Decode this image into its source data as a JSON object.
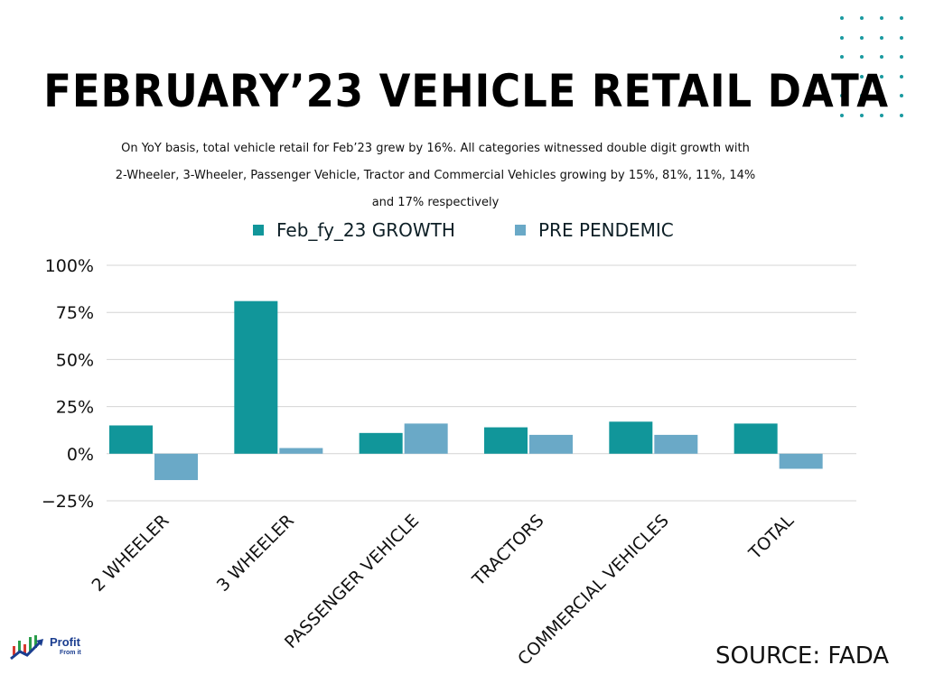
{
  "page": {
    "title": "FEBRUARY’23 VEHICLE RETAIL DATA",
    "source": "SOURCE: FADA",
    "logo_text_main": "Profit",
    "logo_text_sub": "From it"
  },
  "colors": {
    "series_1": "#11969a",
    "series_2": "#6aa9c7",
    "grid": "#d4d4d4",
    "dots": "#1a9aa0"
  },
  "chart_data": {
    "type": "bar",
    "title": "FEBRUARY’23 VEHICLE RETAIL DATA",
    "subtitle_lines": [
      "On YoY basis, total vehicle retail for Feb’23 grew by 16%. All categories witnessed double digit growth with",
      "2-Wheeler, 3-Wheeler, Passenger Vehicle, Tractor and Commercial Vehicles growing by 15%, 81%, 11%, 14%",
      "and 17% respectively"
    ],
    "categories": [
      "2 WHEELER",
      "3 WHEELER",
      "PASSENGER VEHICLE",
      "TRACTORS",
      "COMMERCIAL VEHICLES",
      "TOTAL"
    ],
    "series": [
      {
        "name": "Feb_fy_23 GROWTH",
        "values": [
          15,
          81,
          11,
          14,
          17,
          16
        ]
      },
      {
        "name": "PRE PENDEMIC",
        "values": [
          -14,
          3,
          16,
          10,
          10,
          -8
        ]
      }
    ],
    "ylim": [
      -25,
      100
    ],
    "yticks": [
      -25,
      0,
      25,
      50,
      75,
      100
    ],
    "ytick_labels": [
      "−25%",
      "0%",
      "25%",
      "50%",
      "75%",
      "100%"
    ],
    "xlabel": "",
    "ylabel": "",
    "grid": true,
    "legend": "top-center"
  }
}
